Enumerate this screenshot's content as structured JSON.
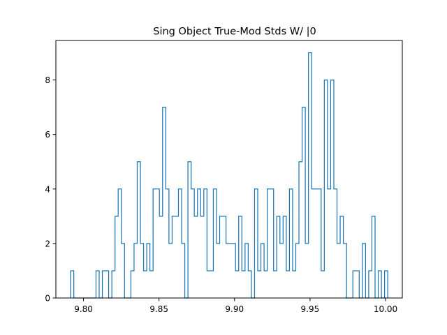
{
  "chart_data": {
    "type": "step-histogram",
    "title": "Sing Object True-Mod Stds W/ |0",
    "xlabel": "",
    "ylabel": "",
    "xlim": [
      9.7817,
      10.0111
    ],
    "ylim": [
      0,
      9.45
    ],
    "x_ticks": [
      9.8,
      9.85,
      9.9,
      9.95,
      10.0
    ],
    "x_tick_labels": [
      "9.80",
      "9.85",
      "9.90",
      "9.95",
      "10.00"
    ],
    "y_ticks": [
      0,
      2,
      4,
      6,
      8
    ],
    "y_tick_labels": [
      "0",
      "2",
      "4",
      "6",
      "8"
    ],
    "grid": false,
    "legend": "none",
    "series_color": "#1f77b4",
    "bin_start": 9.79147,
    "bin_end": 10.00146,
    "counts": [
      1,
      0,
      0,
      0,
      0,
      0,
      0,
      0,
      1,
      0,
      1,
      1,
      0,
      1,
      3,
      4,
      2,
      0,
      0,
      1,
      2,
      5,
      2,
      1,
      2,
      1,
      4,
      4,
      3,
      7,
      4,
      2,
      3,
      3,
      4,
      2,
      0,
      5,
      4,
      3,
      4,
      3,
      4,
      1,
      1,
      4,
      2,
      3,
      3,
      2,
      2,
      2,
      1,
      3,
      1,
      2,
      1,
      0,
      4,
      1,
      2,
      1,
      4,
      4,
      1,
      3,
      2,
      3,
      1,
      4,
      1,
      2,
      5,
      7,
      2,
      9,
      4,
      4,
      4,
      1,
      8,
      4,
      8,
      4,
      2,
      3,
      2,
      0,
      0,
      1,
      1,
      0,
      2,
      0,
      1,
      3,
      0,
      1,
      0,
      1
    ]
  }
}
